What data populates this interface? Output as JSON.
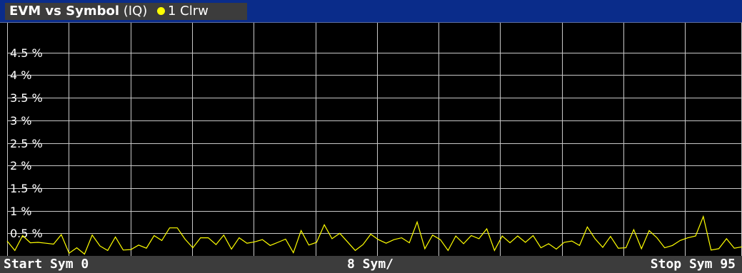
{
  "window": {
    "title_bold": "EVM vs Symbol",
    "title_mode": "(IQ)",
    "trace_label": "1 Clrw",
    "trace_color": "#ffff00"
  },
  "footer": {
    "start": "Start Sym 0",
    "step": "8 Sym/",
    "stop": "Stop Sym 95"
  },
  "chart_data": {
    "type": "line",
    "xlim": [
      0,
      95
    ],
    "ylim": [
      0,
      5
    ],
    "yticks": [
      0.5,
      1,
      1.5,
      2,
      2.5,
      3,
      3.5,
      4,
      4.5
    ],
    "ytick_labels": [
      "0.5 %",
      "1 %",
      "1.5 %",
      "2 %",
      "2.5 %",
      "3 %",
      "3.5 %",
      "4 %",
      "4.5 %"
    ],
    "grid": true,
    "series": [
      {
        "color": "#ffff00",
        "values": [
          0.33,
          0.12,
          0.45,
          0.29,
          0.3,
          0.28,
          0.26,
          0.47,
          0.06,
          0.18,
          0.04,
          0.46,
          0.22,
          0.12,
          0.42,
          0.13,
          0.14,
          0.24,
          0.17,
          0.45,
          0.34,
          0.62,
          0.62,
          0.37,
          0.18,
          0.4,
          0.4,
          0.25,
          0.46,
          0.15,
          0.4,
          0.28,
          0.31,
          0.36,
          0.23,
          0.3,
          0.37,
          0.07,
          0.56,
          0.24,
          0.3,
          0.69,
          0.38,
          0.5,
          0.31,
          0.12,
          0.25,
          0.48,
          0.36,
          0.28,
          0.36,
          0.4,
          0.29,
          0.75,
          0.16,
          0.46,
          0.36,
          0.12,
          0.44,
          0.27,
          0.45,
          0.38,
          0.6,
          0.12,
          0.44,
          0.29,
          0.44,
          0.3,
          0.45,
          0.18,
          0.27,
          0.15,
          0.3,
          0.33,
          0.23,
          0.64,
          0.38,
          0.19,
          0.43,
          0.17,
          0.18,
          0.58,
          0.16,
          0.56,
          0.4,
          0.18,
          0.23,
          0.34,
          0.4,
          0.44,
          0.87,
          0.13,
          0.16,
          0.38,
          0.17,
          0.2
        ]
      }
    ]
  }
}
